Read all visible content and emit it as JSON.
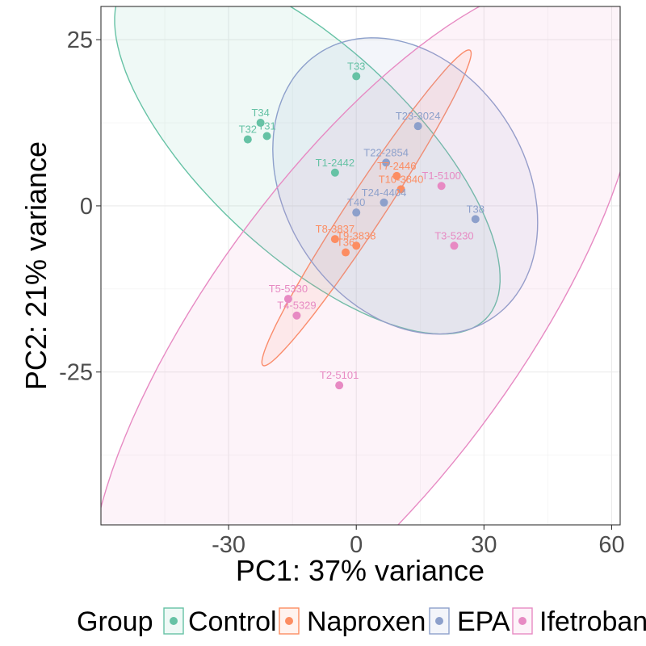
{
  "chart_data": {
    "type": "scatter",
    "xlabel": "PC1: 37% variance",
    "ylabel": "PC2: 21% variance",
    "xlim": [
      -60,
      62
    ],
    "ylim": [
      -48,
      30
    ],
    "xticks": [
      -30,
      0,
      30,
      60
    ],
    "yticks": [
      25,
      0,
      -25
    ],
    "xtick_labels": [
      "-30",
      "0",
      "30",
      "60"
    ],
    "ytick_labels": [
      "25",
      "0",
      "-25"
    ],
    "grid": true,
    "legend": {
      "title": "Group",
      "position": "bottom",
      "entries": [
        "Control",
        "Naproxen",
        "EPA",
        "Ifetroban"
      ]
    },
    "series": [
      {
        "name": "Control",
        "color": "#66c2a5",
        "points": [
          {
            "label": "T33",
            "x": 0,
            "y": 19.5
          },
          {
            "label": "T34",
            "x": -22.5,
            "y": 12.5
          },
          {
            "label": "T32",
            "x": -25.5,
            "y": 10
          },
          {
            "label": "T31",
            "x": -21,
            "y": 10.5
          },
          {
            "label": "T1-2442",
            "x": -5,
            "y": 5
          }
        ],
        "ellipse": {
          "cx": -11.5,
          "cy": 8.5,
          "rx": 50,
          "ry": 18,
          "angle": -27
        }
      },
      {
        "name": "Naproxen",
        "color": "#fc8d62",
        "points": [
          {
            "label": "T10-3840",
            "x": 10.5,
            "y": 2.5
          },
          {
            "label": "T7-2446",
            "x": 9.5,
            "y": 4.5
          },
          {
            "label": "T8-3837",
            "x": -5,
            "y": -5
          },
          {
            "label": "T9-3838",
            "x": 0,
            "y": -6
          },
          {
            "label": "T36",
            "x": -2.5,
            "y": -7
          }
        ],
        "ellipse": {
          "cx": 2.4,
          "cy": -0.3,
          "rx": 34,
          "ry": 3.6,
          "angle": 44
        }
      },
      {
        "name": "EPA",
        "color": "#8da0cb",
        "points": [
          {
            "label": "T23-3024",
            "x": 14.5,
            "y": 12
          },
          {
            "label": "T22-2854",
            "x": 7,
            "y": 6.5
          },
          {
            "label": "T24-4404",
            "x": 6.5,
            "y": 0.5
          },
          {
            "label": "T40",
            "x": 0,
            "y": -1
          },
          {
            "label": "T38",
            "x": 28,
            "y": -2
          }
        ],
        "ellipse": {
          "cx": 11.5,
          "cy": 3,
          "rx": 32,
          "ry": 21,
          "angle": -18
        }
      },
      {
        "name": "Ifetroban",
        "color": "#e78ac3",
        "points": [
          {
            "label": "T1-5100",
            "x": 20,
            "y": 3
          },
          {
            "label": "T3-5230",
            "x": 23,
            "y": -6
          },
          {
            "label": "T5-5330",
            "x": -16,
            "y": -14
          },
          {
            "label": "T4-5329",
            "x": -14,
            "y": -16.5
          },
          {
            "label": "T2-5101",
            "x": -4,
            "y": -27
          }
        ],
        "ellipse": {
          "cx": 2,
          "cy": -18,
          "rx": 78,
          "ry": 29,
          "angle": 37
        }
      }
    ]
  }
}
